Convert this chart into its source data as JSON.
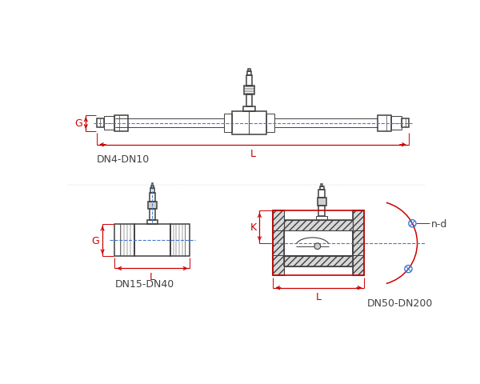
{
  "bg_color": "#ffffff",
  "line_color": "#404040",
  "red_color": "#cc0000",
  "blue_color": "#4477cc",
  "label_dn4": "DN4-DN10",
  "label_dn15": "DN15-DN40",
  "label_dn50": "DN50-DN200",
  "label_L": "L",
  "label_G": "G",
  "label_K": "K",
  "label_nd": "n-d",
  "title_fontsize": 9,
  "dim_fontsize": 9,
  "lw_main": 1.1,
  "lw_thin": 0.7,
  "lw_dim": 0.9
}
